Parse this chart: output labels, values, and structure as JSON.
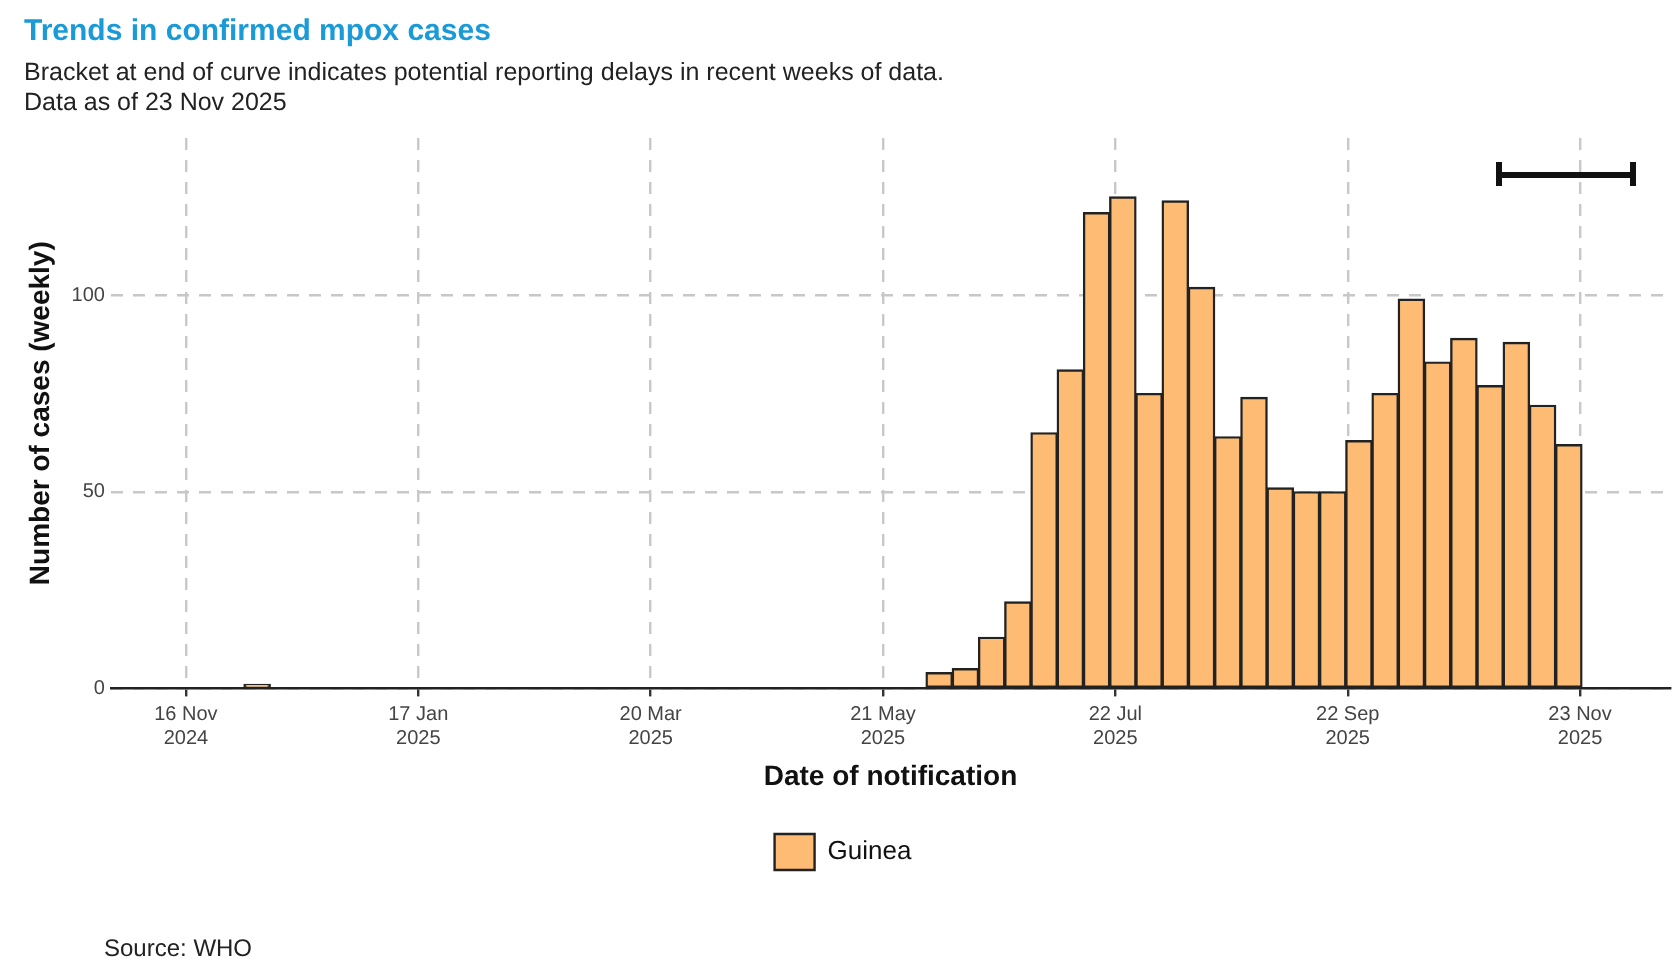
{
  "chart_data": {
    "type": "bar",
    "title": "Trends in confirmed mpox cases",
    "subtitle": "Bracket at end of curve indicates potential reporting delays in recent weeks of data.\nData as of 23 Nov 2025",
    "xlabel": "Date of notification",
    "ylabel": "Number of cases (weekly)",
    "x": [
      "2024-12-05",
      "2025-06-05",
      "2025-06-12",
      "2025-06-19",
      "2025-06-26",
      "2025-07-03",
      "2025-07-10",
      "2025-07-17",
      "2025-07-24",
      "2025-07-31",
      "2025-08-07",
      "2025-08-14",
      "2025-08-21",
      "2025-08-28",
      "2025-09-04",
      "2025-09-11",
      "2025-09-18",
      "2025-09-25",
      "2025-10-02",
      "2025-10-09",
      "2025-10-16",
      "2025-10-23",
      "2025-10-30",
      "2025-11-06",
      "2025-11-13",
      "2025-11-20"
    ],
    "series": [
      {
        "name": "Guinea",
        "color": "#fdbb74",
        "values": [
          1,
          4,
          5,
          13,
          22,
          65,
          81,
          121,
          125,
          75,
          124,
          102,
          64,
          74,
          51,
          50,
          50,
          63,
          75,
          99,
          83,
          89,
          77,
          88,
          72,
          62
        ]
      }
    ],
    "xlim": [
      "2024-10-27",
      "2025-12-17"
    ],
    "xticks": [
      {
        "value": "2024-11-16",
        "label": "16 Nov\n2024"
      },
      {
        "value": "2025-01-17",
        "label": "17 Jan\n2025"
      },
      {
        "value": "2025-03-20",
        "label": "20 Mar\n2025"
      },
      {
        "value": "2025-05-21",
        "label": "21 May\n2025"
      },
      {
        "value": "2025-07-22",
        "label": "22 Jul\n2025"
      },
      {
        "value": "2025-09-22",
        "label": "22 Sep\n2025"
      },
      {
        "value": "2025-11-23",
        "label": "23 Nov\n2025"
      }
    ],
    "ylim": [
      0,
      140
    ],
    "yticks": [
      0,
      50,
      100
    ],
    "grid": true,
    "legend": "bottom",
    "annotations": [
      "Source: WHO"
    ]
  }
}
